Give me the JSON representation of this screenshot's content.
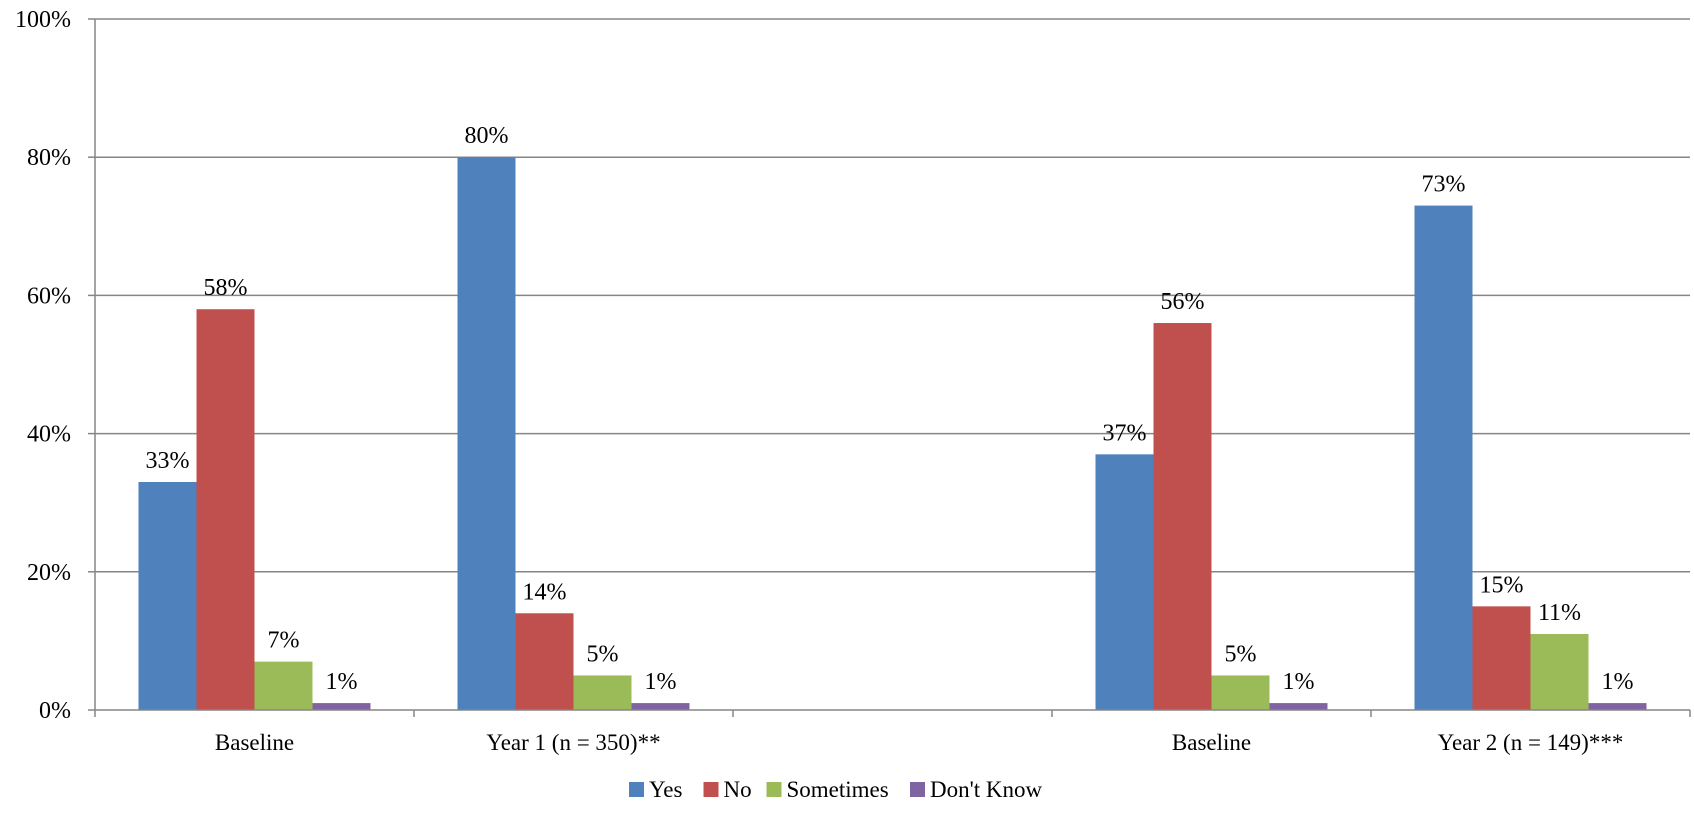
{
  "chart_data": {
    "type": "bar",
    "categories": [
      "Baseline",
      "Year 1 (n = 350)**",
      "",
      "Baseline",
      "Year 2 (n = 149)***"
    ],
    "series": [
      {
        "name": "Yes",
        "color": "#4F81BD",
        "values": [
          33,
          80,
          null,
          37,
          73
        ],
        "labels": [
          "33%",
          "80%",
          "",
          "37%",
          "73%"
        ]
      },
      {
        "name": "No",
        "color": "#C0504D",
        "values": [
          58,
          14,
          null,
          56,
          15
        ],
        "labels": [
          "58%",
          "14%",
          "",
          "56%",
          "15%"
        ]
      },
      {
        "name": "Sometimes",
        "color": "#9BBB59",
        "values": [
          7,
          5,
          null,
          5,
          11
        ],
        "labels": [
          "7%",
          "5%",
          "",
          "5%",
          "11%"
        ]
      },
      {
        "name": "Don't Know",
        "color": "#8064A2",
        "values": [
          1,
          1,
          null,
          1,
          1
        ],
        "labels": [
          "1%",
          "1%",
          "",
          "1%",
          "1%"
        ]
      }
    ],
    "yaxis": {
      "min": 0,
      "max": 100,
      "ticks": [
        0,
        20,
        40,
        60,
        80,
        100
      ],
      "tick_labels": [
        "0%",
        "20%",
        "40%",
        "60%",
        "80%",
        "100%"
      ]
    },
    "grid": true,
    "legend": {
      "position": "bottom"
    },
    "title": "",
    "xlabel": "",
    "ylabel": ""
  }
}
